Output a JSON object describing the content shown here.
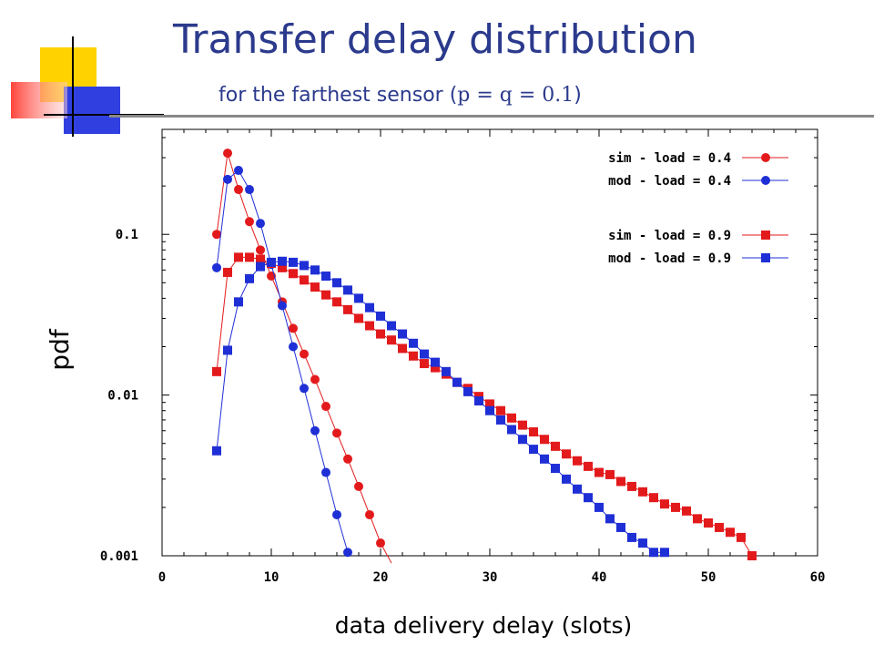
{
  "slide": {
    "title": "Transfer delay distribution",
    "subtitle_prefix": "for the farthest sensor (",
    "subtitle_math": "p = q = 0.1",
    "subtitle_suffix": ")"
  },
  "colors": {
    "title": "#2b3a8c",
    "sim": "#e31a1c",
    "mod": "#1f2fd6",
    "deco_yellow": "#ffd200",
    "deco_red": "#ff3b30",
    "deco_blue": "#3040e0"
  },
  "chart_data": {
    "type": "line",
    "xlabel": "data delivery delay (slots)",
    "ylabel": "pdf",
    "xlim": [
      0,
      60
    ],
    "ylim": [
      0.001,
      0.45
    ],
    "yscale": "log",
    "xticks": [
      0,
      10,
      20,
      30,
      40,
      50,
      60
    ],
    "yticks": [
      0.001,
      0.01,
      0.1
    ],
    "ytick_labels": [
      "0.001",
      "0.01",
      "0.1"
    ],
    "grid": false,
    "legend_position": "top-right",
    "series": [
      {
        "name": "sim - load = 0.4",
        "marker": "circle",
        "color": "#e31a1c",
        "x": [
          5,
          6,
          7,
          8,
          9,
          10,
          11,
          12,
          13,
          14,
          15,
          16,
          17,
          18,
          19,
          20,
          21
        ],
        "y": [
          0.1,
          0.32,
          0.19,
          0.12,
          0.08,
          0.055,
          0.038,
          0.026,
          0.018,
          0.0125,
          0.0085,
          0.0058,
          0.004,
          0.0027,
          0.0018,
          0.0012,
          0.0009
        ]
      },
      {
        "name": "mod - load = 0.4",
        "marker": "circle",
        "color": "#1f2fd6",
        "x": [
          5,
          6,
          7,
          8,
          9,
          10,
          11,
          12,
          13,
          14,
          15,
          16,
          17
        ],
        "y": [
          0.062,
          0.22,
          0.25,
          0.19,
          0.117,
          0.065,
          0.036,
          0.02,
          0.011,
          0.006,
          0.0033,
          0.0018,
          0.00105
        ]
      },
      {
        "name": "sim - load = 0.9",
        "marker": "square",
        "color": "#e31a1c",
        "x": [
          5,
          6,
          7,
          8,
          9,
          10,
          11,
          12,
          13,
          14,
          15,
          16,
          17,
          18,
          19,
          20,
          21,
          22,
          23,
          24,
          25,
          26,
          27,
          28,
          29,
          30,
          31,
          32,
          33,
          34,
          35,
          36,
          37,
          38,
          39,
          40,
          41,
          42,
          43,
          44,
          45,
          46,
          47,
          48,
          49,
          50,
          51,
          52,
          53,
          54
        ],
        "y": [
          0.014,
          0.058,
          0.072,
          0.072,
          0.07,
          0.066,
          0.062,
          0.057,
          0.052,
          0.047,
          0.042,
          0.038,
          0.034,
          0.03,
          0.027,
          0.024,
          0.022,
          0.0195,
          0.0175,
          0.0157,
          0.0148,
          0.0135,
          0.012,
          0.011,
          0.0098,
          0.0088,
          0.008,
          0.0072,
          0.0065,
          0.0059,
          0.0053,
          0.0048,
          0.0043,
          0.0039,
          0.0036,
          0.0033,
          0.0032,
          0.0029,
          0.0027,
          0.0025,
          0.0023,
          0.0021,
          0.002,
          0.0019,
          0.0017,
          0.0016,
          0.0015,
          0.0014,
          0.0013,
          0.001
        ]
      },
      {
        "name": "mod - load = 0.9",
        "marker": "square",
        "color": "#1f2fd6",
        "x": [
          5,
          6,
          7,
          8,
          9,
          10,
          11,
          12,
          13,
          14,
          15,
          16,
          17,
          18,
          19,
          20,
          21,
          22,
          23,
          24,
          25,
          26,
          27,
          28,
          29,
          30,
          31,
          32,
          33,
          34,
          35,
          36,
          37,
          38,
          39,
          40,
          41,
          42,
          43,
          44,
          45,
          46
        ],
        "y": [
          0.0045,
          0.019,
          0.038,
          0.053,
          0.063,
          0.067,
          0.068,
          0.067,
          0.064,
          0.06,
          0.055,
          0.05,
          0.045,
          0.04,
          0.035,
          0.031,
          0.027,
          0.024,
          0.021,
          0.018,
          0.016,
          0.014,
          0.012,
          0.0105,
          0.0092,
          0.008,
          0.007,
          0.0061,
          0.0053,
          0.0046,
          0.004,
          0.0035,
          0.003,
          0.0026,
          0.0023,
          0.002,
          0.0017,
          0.0015,
          0.0013,
          0.0012,
          0.00105,
          0.00105
        ]
      }
    ]
  }
}
